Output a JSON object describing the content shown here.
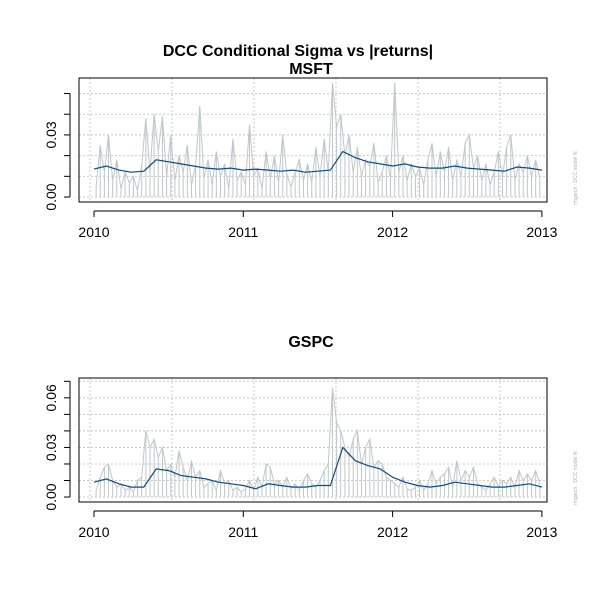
{
  "chart_data": {
    "type": "line",
    "title": "DCC Conditional Sigma vs |returns|",
    "side_note": "rmgarch  :  DCC model fit",
    "x_range": [
      2010,
      2013
    ],
    "x_ticks": [
      "2010",
      "2011",
      "2012",
      "2013"
    ],
    "colors": {
      "returns": "#bfc7c9",
      "sigma": "#0b4c8c",
      "grid": "#c8c8c8"
    },
    "panels": [
      {
        "name": "MSFT",
        "ylim": [
          -0.0024,
          0.0575
        ],
        "y_ticks": [
          0,
          0.01,
          0.02,
          0.03,
          0.04,
          0.05
        ],
        "y_tick_labels": [
          "0.00",
          "0.03"
        ],
        "y_tick_label_values": [
          0,
          0.03
        ],
        "abs_returns": [
          0.005,
          0.025,
          0.012,
          0.03,
          0.008,
          0.018,
          0.004,
          0.012,
          0.007,
          0.01,
          0.003,
          0.015,
          0.038,
          0.012,
          0.04,
          0.022,
          0.039,
          0.01,
          0.03,
          0.008,
          0.02,
          0.012,
          0.025,
          0.006,
          0.015,
          0.044,
          0.009,
          0.018,
          0.006,
          0.022,
          0.01,
          0.016,
          0.004,
          0.028,
          0.008,
          0.012,
          0.006,
          0.035,
          0.01,
          0.014,
          0.004,
          0.022,
          0.009,
          0.02,
          0.007,
          0.03,
          0.011,
          0.005,
          0.012,
          0.018,
          0.008,
          0.016,
          0.007,
          0.024,
          0.01,
          0.028,
          0.012,
          0.055,
          0.034,
          0.04,
          0.02,
          0.03,
          0.012,
          0.024,
          0.01,
          0.018,
          0.015,
          0.026,
          0.007,
          0.012,
          0.02,
          0.009,
          0.055,
          0.012,
          0.02,
          0.008,
          0.016,
          0.01,
          0.014,
          0.006,
          0.018,
          0.026,
          0.01,
          0.022,
          0.012,
          0.024,
          0.008,
          0.018,
          0.01,
          0.026,
          0.03,
          0.014,
          0.02,
          0.008,
          0.016,
          0.006,
          0.012,
          0.022,
          0.01,
          0.024,
          0.03,
          0.008,
          0.016,
          0.012,
          0.02,
          0.01,
          0.018,
          0.009
        ],
        "sigma": [
          0.0135,
          0.015,
          0.013,
          0.012,
          0.0125,
          0.018,
          0.017,
          0.016,
          0.015,
          0.014,
          0.0135,
          0.014,
          0.013,
          0.0135,
          0.013,
          0.0125,
          0.013,
          0.012,
          0.0125,
          0.013,
          0.022,
          0.019,
          0.017,
          0.016,
          0.015,
          0.016,
          0.0145,
          0.014,
          0.014,
          0.015,
          0.014,
          0.0135,
          0.013,
          0.0125,
          0.0145,
          0.014,
          0.013
        ]
      },
      {
        "name": "GSPC",
        "ylim": [
          -0.003,
          0.072
        ],
        "y_ticks": [
          0,
          0.01,
          0.02,
          0.03,
          0.04,
          0.05,
          0.06,
          0.07
        ],
        "y_tick_labels": [
          "0.00",
          "0.03",
          "0.06"
        ],
        "y_tick_label_values": [
          0,
          0.03,
          0.06
        ],
        "abs_returns": [
          0.004,
          0.012,
          0.018,
          0.02,
          0.01,
          0.006,
          0.008,
          0.004,
          0.006,
          0.003,
          0.01,
          0.012,
          0.04,
          0.03,
          0.035,
          0.024,
          0.03,
          0.016,
          0.02,
          0.012,
          0.028,
          0.018,
          0.01,
          0.022,
          0.012,
          0.016,
          0.006,
          0.008,
          0.01,
          0.004,
          0.016,
          0.008,
          0.01,
          0.004,
          0.006,
          0.003,
          0.005,
          0.01,
          0.004,
          0.012,
          0.006,
          0.02,
          0.018,
          0.008,
          0.01,
          0.006,
          0.012,
          0.005,
          0.008,
          0.004,
          0.01,
          0.014,
          0.008,
          0.006,
          0.01,
          0.016,
          0.02,
          0.066,
          0.045,
          0.04,
          0.03,
          0.024,
          0.035,
          0.04,
          0.02,
          0.03,
          0.035,
          0.018,
          0.022,
          0.02,
          0.012,
          0.01,
          0.008,
          0.006,
          0.012,
          0.005,
          0.004,
          0.006,
          0.01,
          0.004,
          0.008,
          0.016,
          0.008,
          0.012,
          0.014,
          0.018,
          0.006,
          0.022,
          0.01,
          0.016,
          0.012,
          0.018,
          0.008,
          0.006,
          0.004,
          0.008,
          0.012,
          0.006,
          0.01,
          0.008,
          0.012,
          0.006,
          0.016,
          0.01,
          0.014,
          0.01,
          0.016,
          0.008
        ],
        "sigma": [
          0.009,
          0.011,
          0.008,
          0.006,
          0.006,
          0.017,
          0.016,
          0.013,
          0.012,
          0.011,
          0.009,
          0.008,
          0.007,
          0.005,
          0.008,
          0.007,
          0.006,
          0.006,
          0.007,
          0.007,
          0.03,
          0.022,
          0.019,
          0.017,
          0.012,
          0.009,
          0.007,
          0.006,
          0.007,
          0.009,
          0.008,
          0.007,
          0.006,
          0.006,
          0.007,
          0.008,
          0.006
        ]
      }
    ]
  }
}
